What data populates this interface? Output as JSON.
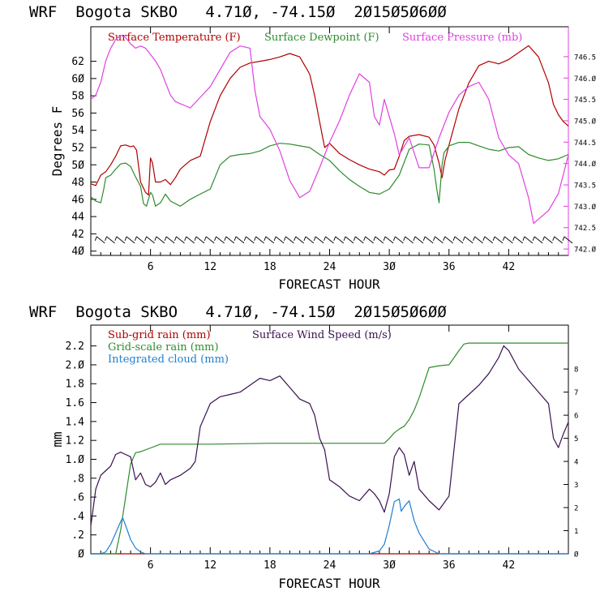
{
  "chart_data": [
    {
      "type": "line",
      "header": "WRF  Bogota SKBO   4.71Ø, -74.15Ø  2Ø15Ø5Ø6ØØ",
      "xlabel": "FORECAST HOUR",
      "ylabel": "Degrees F",
      "xlim": [
        0,
        48
      ],
      "ylim": [
        39.5,
        66
      ],
      "y2lim": [
        741.85,
        747.2
      ],
      "x_ticks": [
        6,
        12,
        18,
        24,
        30,
        36,
        42
      ],
      "x_tick_labels": [
        "6",
        "12",
        "18",
        "24",
        "3Ø",
        "36",
        "42"
      ],
      "y_ticks": [
        40,
        42,
        44,
        46,
        48,
        50,
        52,
        54,
        56,
        58,
        60,
        62
      ],
      "y_tick_labels": [
        "4Ø",
        "42",
        "44",
        "46",
        "48",
        "5Ø",
        "52",
        "54",
        "56",
        "58",
        "6Ø",
        "62"
      ],
      "y2_ticks": [
        742.0,
        742.5,
        743.0,
        743.5,
        744.0,
        744.5,
        745.0,
        745.5,
        746.0,
        746.5
      ],
      "y2_tick_labels": [
        "742.Ø",
        "742.5",
        "743.Ø",
        "743.5",
        "744.Ø",
        "744.5",
        "745.Ø",
        "745.5",
        "746.Ø",
        "746.5"
      ],
      "wind_barbs": "row of wind barbs near y=41",
      "series": [
        {
          "name": "Surface Temperature (F)",
          "color": "#b00000",
          "axis": "left",
          "x": [
            0,
            0.5,
            1,
            1.5,
            2,
            2.5,
            3,
            3.5,
            4,
            4.3,
            4.6,
            5,
            5.5,
            5.8,
            6,
            6.2,
            6.5,
            7,
            7.5,
            8,
            8.5,
            9,
            10,
            11,
            12,
            13,
            14,
            15,
            16,
            17,
            18,
            19,
            20,
            21,
            22,
            22.5,
            23,
            23.5,
            24,
            25,
            26,
            27,
            28,
            29,
            29.5,
            30,
            30.5,
            31,
            31.5,
            32,
            33,
            34,
            34.5,
            35,
            35.3,
            35.6,
            36,
            37,
            38,
            39,
            40,
            41,
            42,
            43,
            44,
            45,
            46,
            46.5,
            47,
            47.5,
            48
          ],
          "y": [
            47.8,
            47.6,
            48.8,
            49.2,
            50,
            51,
            52.2,
            52.3,
            52.1,
            52.2,
            51.7,
            48,
            46.8,
            46.5,
            50.8,
            50.2,
            48,
            48,
            48.3,
            47.7,
            48.5,
            49.5,
            50.5,
            51,
            55,
            58,
            60,
            61.3,
            61.8,
            62,
            62.2,
            62.5,
            62.9,
            62.5,
            60.5,
            58,
            55,
            52,
            52.5,
            51.3,
            50.6,
            50,
            49.5,
            49.2,
            48.8,
            49.4,
            49.5,
            51,
            52.8,
            53.3,
            53.5,
            53.2,
            52.3,
            50.2,
            48.5,
            50.5,
            52.3,
            56.5,
            59.5,
            61.5,
            62,
            61.7,
            62.2,
            63,
            63.8,
            62.5,
            59.5,
            57,
            55.8,
            55,
            54.5
          ]
        },
        {
          "name": "Surface Dewpoint (F)",
          "color": "#2e8b2e",
          "axis": "left",
          "x": [
            0,
            0.5,
            1,
            1.3,
            1.5,
            2,
            2.5,
            3,
            3.5,
            4,
            4.5,
            5,
            5.3,
            5.6,
            6,
            6.2,
            6.5,
            7,
            7.5,
            8,
            9,
            10,
            11,
            12,
            13,
            14,
            15,
            16,
            17,
            18,
            19,
            20,
            21,
            22,
            23,
            24,
            25,
            26,
            27,
            28,
            29,
            30,
            31,
            32,
            33,
            34,
            34.5,
            34.8,
            35,
            35.3,
            35.5,
            36,
            37,
            38,
            39,
            40,
            41,
            42,
            43,
            44,
            45,
            46,
            47,
            48
          ],
          "y": [
            46.3,
            45.8,
            45.6,
            47.2,
            48.5,
            48.8,
            49.5,
            50.1,
            50.2,
            49.8,
            48.6,
            47.5,
            45.5,
            45.2,
            46.8,
            46.5,
            45.2,
            45.6,
            46.6,
            45.8,
            45.2,
            46,
            46.6,
            47.2,
            50,
            51,
            51.2,
            51.3,
            51.6,
            52.2,
            52.5,
            52.4,
            52.2,
            52,
            51.2,
            50.5,
            49.3,
            48.3,
            47.5,
            46.8,
            46.6,
            47.2,
            48.8,
            51.8,
            52.4,
            52.3,
            49.5,
            47,
            45.6,
            50,
            51.4,
            52.2,
            52.6,
            52.6,
            52.2,
            51.8,
            51.6,
            52,
            52.1,
            51.2,
            50.8,
            50.5,
            50.7,
            51.2
          ]
        },
        {
          "name": "Surface Pressure (mb)",
          "color": "#e040e0",
          "axis": "right",
          "x": [
            0,
            0.5,
            1,
            1.5,
            2,
            2.5,
            3,
            3.5,
            4,
            4.5,
            5,
            5.5,
            6,
            6.5,
            7,
            7.5,
            8,
            8.5,
            9,
            9.5,
            10,
            11,
            12,
            13,
            14,
            15,
            16,
            16.5,
            17,
            18,
            19,
            20,
            21,
            22,
            23,
            24,
            25,
            26,
            27,
            28,
            28.5,
            29,
            29.5,
            30,
            30.5,
            31,
            31.5,
            32,
            33,
            34,
            35,
            36,
            37,
            38,
            39,
            40,
            41,
            42,
            43,
            44,
            44.5,
            45,
            46,
            47,
            48
          ],
          "y": [
            745.5,
            745.6,
            745.9,
            746.4,
            746.7,
            746.9,
            747.0,
            746.95,
            746.8,
            746.7,
            746.75,
            746.7,
            746.55,
            746.4,
            746.2,
            745.9,
            745.6,
            745.45,
            745.4,
            745.35,
            745.3,
            745.55,
            745.8,
            746.2,
            746.6,
            746.75,
            746.7,
            745.7,
            745.1,
            744.8,
            744.3,
            743.6,
            743.2,
            743.35,
            743.9,
            744.5,
            745.0,
            745.6,
            746.1,
            745.9,
            745.1,
            744.9,
            745.5,
            745.1,
            744.7,
            744.2,
            744.4,
            744.6,
            743.9,
            743.9,
            744.6,
            745.2,
            745.6,
            745.8,
            745.9,
            745.5,
            744.6,
            744.2,
            744.0,
            743.2,
            742.6,
            742.7,
            742.9,
            743.3,
            744.2
          ]
        }
      ]
    },
    {
      "type": "line",
      "header": "WRF  Bogota SKBO   4.71Ø, -74.15Ø  2Ø15Ø5Ø6ØØ",
      "xlabel": "FORECAST HOUR",
      "ylabel": "mm",
      "xlim": [
        0,
        48
      ],
      "ylim": [
        0,
        2.42
      ],
      "y2lim": [
        0,
        9.9
      ],
      "x_ticks": [
        6,
        12,
        18,
        24,
        30,
        36,
        42
      ],
      "x_tick_labels": [
        "6",
        "12",
        "18",
        "24",
        "3Ø",
        "36",
        "42"
      ],
      "y_ticks": [
        0,
        0.2,
        0.4,
        0.6,
        0.8,
        1.0,
        1.2,
        1.4,
        1.6,
        1.8,
        2.0,
        2.2
      ],
      "y_tick_labels": [
        "Ø",
        ".2",
        ".4",
        ".6",
        ".8",
        "1.Ø",
        "1.2",
        "1.4",
        "1.6",
        "1.8",
        "2.Ø",
        "2.2"
      ],
      "y2_ticks": [
        0,
        1,
        2,
        3,
        4,
        5,
        6,
        7,
        8
      ],
      "y2_tick_labels": [
        "Ø",
        "1",
        "2",
        "3",
        "4",
        "5",
        "6",
        "7",
        "8"
      ],
      "series": [
        {
          "name": "Sub-grid rain (mm)",
          "color": "#b00000",
          "axis": "left",
          "x": [
            0,
            48
          ],
          "y": [
            0,
            0
          ]
        },
        {
          "name": "Grid-scale rain (mm)",
          "color": "#2e8b2e",
          "axis": "left",
          "x": [
            0,
            2.5,
            3,
            3.5,
            4,
            4.5,
            5,
            6,
            7,
            12,
            18,
            24,
            29.5,
            30,
            30.5,
            31,
            31.5,
            32,
            32.5,
            33,
            34,
            35,
            36,
            37,
            37.5,
            38,
            40,
            42,
            48
          ],
          "y": [
            0,
            0,
            0.25,
            0.6,
            0.95,
            1.07,
            1.08,
            1.12,
            1.16,
            1.16,
            1.17,
            1.17,
            1.17,
            1.22,
            1.28,
            1.32,
            1.35,
            1.42,
            1.52,
            1.65,
            1.97,
            1.99,
            2.0,
            2.15,
            2.22,
            2.23,
            2.23,
            2.23,
            2.23
          ]
        },
        {
          "name": "Integrated cloud (mm)",
          "color": "#1e7fd0",
          "axis": "left",
          "x": [
            0,
            1,
            1.5,
            2,
            2.5,
            3,
            3.2,
            3.5,
            4,
            4.5,
            5,
            5.5,
            6,
            28,
            29,
            29.5,
            30,
            30.5,
            31,
            31.2,
            31.5,
            32,
            32.5,
            33,
            34,
            35,
            48
          ],
          "y": [
            0,
            0,
            0.02,
            0.1,
            0.22,
            0.34,
            0.38,
            0.3,
            0.15,
            0.06,
            0.02,
            0,
            0,
            0,
            0.03,
            0.1,
            0.3,
            0.55,
            0.58,
            0.45,
            0.5,
            0.56,
            0.35,
            0.22,
            0.05,
            0,
            0
          ]
        },
        {
          "name": "Surface Wind Speed (m/s)",
          "color": "#3a1050",
          "axis": "right",
          "x": [
            0,
            0.5,
            1,
            1.5,
            2,
            2.5,
            3,
            3.5,
            4,
            4.5,
            5,
            5.5,
            6,
            6.5,
            7,
            7.5,
            8,
            9,
            10,
            10.5,
            11,
            12,
            13,
            14,
            15,
            16,
            17,
            18,
            19,
            20,
            21,
            22,
            22.5,
            23,
            23.5,
            24,
            25,
            26,
            27,
            28,
            28.5,
            29,
            29.5,
            30,
            30.5,
            31,
            31.5,
            32,
            32.5,
            33,
            34,
            35,
            36,
            37,
            38,
            39,
            40,
            41,
            41.5,
            42,
            43,
            44,
            45,
            46,
            46.5,
            47,
            47.5,
            48
          ],
          "y": [
            1.2,
            2.8,
            3.4,
            3.6,
            3.8,
            4.3,
            4.4,
            4.3,
            4.2,
            3.2,
            3.5,
            3.0,
            2.9,
            3.1,
            3.5,
            3.0,
            3.2,
            3.4,
            3.7,
            4.0,
            5.5,
            6.5,
            6.8,
            6.9,
            7.0,
            7.3,
            7.6,
            7.5,
            7.7,
            7.2,
            6.7,
            6.5,
            6.0,
            5.0,
            4.5,
            3.2,
            2.9,
            2.5,
            2.3,
            2.8,
            2.6,
            2.3,
            1.8,
            2.6,
            4.2,
            4.6,
            4.3,
            3.4,
            4.0,
            2.8,
            2.3,
            1.9,
            2.5,
            6.5,
            6.9,
            7.3,
            7.8,
            8.5,
            9.0,
            8.8,
            8.0,
            7.5,
            7.0,
            6.5,
            5.0,
            4.6,
            5.2,
            5.7
          ]
        }
      ]
    }
  ]
}
